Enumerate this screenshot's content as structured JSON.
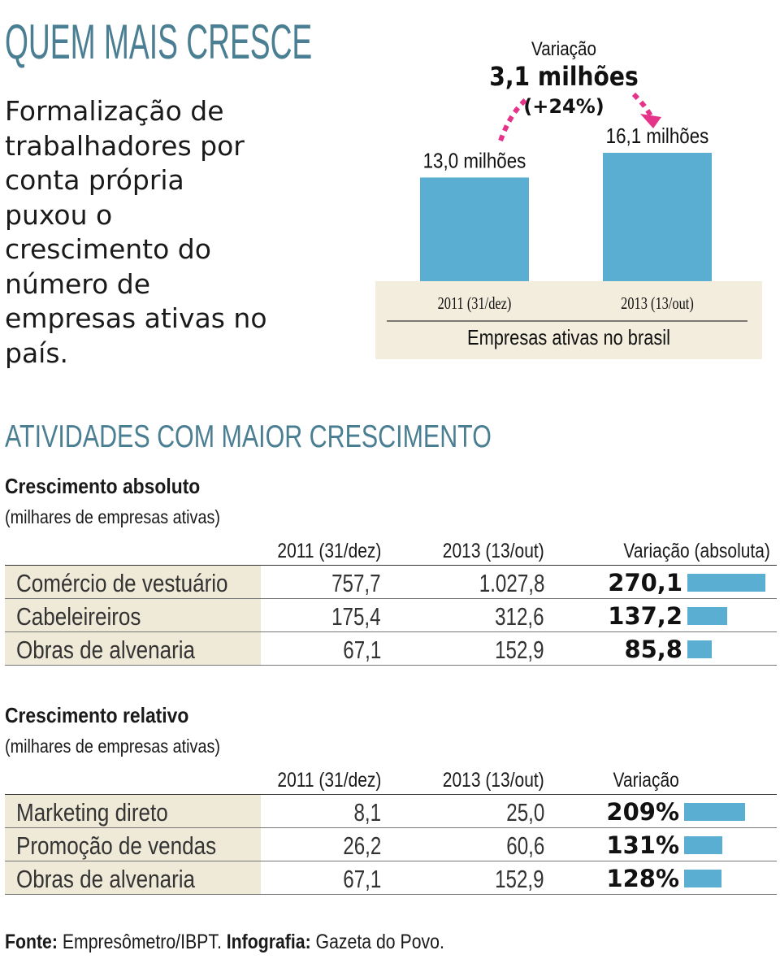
{
  "header": {
    "title": "QUEM MAIS CRESCE",
    "lead": "Formalização de trabalhadores por conta própria puxou o crescimento do número de empresas ativas no país."
  },
  "chart_data": [
    {
      "type": "bar",
      "categories": [
        "2011 (31/dez)",
        "2013 (13/out)"
      ],
      "values": [
        13.0,
        16.1
      ],
      "value_labels": [
        "13,0 milhões",
        "16,1 milhões"
      ],
      "xlabel": "Empresas ativas no brasil",
      "annotation": {
        "label": "Variação",
        "value": "3,1 milhões",
        "percent": "(+24%)"
      },
      "bar_color": "#5aaed1",
      "accent_color": "#e6338a"
    },
    {
      "type": "table",
      "section_title": "ATIVIDADES COM MAIOR CRESCIMENTO",
      "title": "Crescimento absoluto",
      "subtitle": "(milhares de empresas ativas)",
      "columns": [
        "2011 (31/dez)",
        "2013 (13/out)",
        "Variação (absoluta)"
      ],
      "rows": [
        {
          "label": "Comércio de vestuário",
          "v2011": "757,7",
          "v2013": "1.027,8",
          "var": "270,1",
          "value": 270.1
        },
        {
          "label": "Cabeleireiros",
          "v2011": "175,4",
          "v2013": "312,6",
          "var": "137,2",
          "value": 137.2
        },
        {
          "label": "Obras de alvenaria",
          "v2011": "67,1",
          "v2013": "152,9",
          "var": "85,8",
          "value": 85.8
        }
      ]
    },
    {
      "type": "table",
      "title": "Crescimento relativo",
      "subtitle": "(milhares de empresas ativas)",
      "columns": [
        "2011 (31/dez)",
        "2013 (13/out)",
        "Variação"
      ],
      "rows": [
        {
          "label": "Marketing direto",
          "v2011": "8,1",
          "v2013": "25,0",
          "var": "209%",
          "value": 209
        },
        {
          "label": "Promoção de vendas",
          "v2011": "26,2",
          "v2013": "60,6",
          "var": "131%",
          "value": 131
        },
        {
          "label": "Obras de alvenaria",
          "v2011": "67,1",
          "v2013": "152,9",
          "var": "128%",
          "value": 128
        }
      ]
    }
  ],
  "footer": {
    "source_label": "Fonte:",
    "source_text": " Empresômetro/IBPT. ",
    "credit_label": "Infografia:",
    "credit_text": " Gazeta do Povo."
  }
}
